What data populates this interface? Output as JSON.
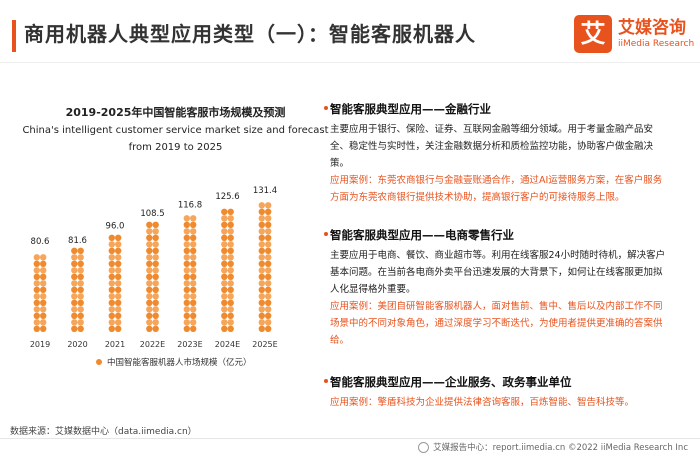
{
  "header": {
    "title": "商用机器人典型应用类型（一）：智能客服机器人",
    "logo_mark": "艾",
    "logo_cn": "艾媒咨询",
    "logo_en": "iiMedia Research"
  },
  "chart_data": {
    "type": "bar",
    "title": "2019-2025年中国智能客服市场规模及预测",
    "subtitle": "China's intelligent customer service market size and forecast from 2019 to 2025",
    "categories": [
      "2019",
      "2020",
      "2021",
      "2022E",
      "2023E",
      "2024E",
      "2025E"
    ],
    "series": [
      {
        "name": "中国智能客服机器人市场规模（亿元）",
        "values": [
          80.6,
          81.6,
          96.0,
          108.5,
          116.8,
          125.6,
          131.4
        ]
      }
    ],
    "value_labels": [
      "80.6",
      "81.6",
      "96.0",
      "108.5",
      "116.8",
      "125.6",
      "131.4"
    ],
    "legend_position": "bottom",
    "grid": false,
    "color": "#f08a2f"
  },
  "sections": [
    {
      "title": "智能客服典型应用——金融行业",
      "body": "主要应用于银行、保险、证券、互联网金融等细分领域。用于考量金融产品安全、稳定性与实时性，关注金融数据分析和质检监控功能，协助客户做金融决策。",
      "case": "应用案例：东莞农商银行与金融壹账通合作，通过AI运营服务方案，在客户服务方面为东莞农商银行提供技术协助，提高银行客户的可接待服务上限。"
    },
    {
      "title": "智能客服典型应用——电商零售行业",
      "body": "主要应用于电商、餐饮、商业超市等。利用在线客服24小时随时待机，解决客户基本问题。在当前各电商外卖平台迅速发展的大背景下，如何让在线客服更加拟人化显得格外重要。",
      "case": "应用案例：美团自研智能客服机器人，面对售前、售中、售后以及内部工作不同场景中的不同对象角色，通过深度学习不断迭代，为使用者提供更准确的答案供给。"
    },
    {
      "title": "智能客服典型应用——企业服务、政务事业单位",
      "body": "",
      "case": "应用案例：擎盾科技为企业提供法律咨询客服，百炼智能、智告科技等。"
    }
  ],
  "footer": {
    "source": "数据来源：艾媒数据中心（data.iimedia.cn）",
    "credit": "艾媒报告中心：report.iimedia.cn  ©2022  iiMedia Research  Inc"
  }
}
